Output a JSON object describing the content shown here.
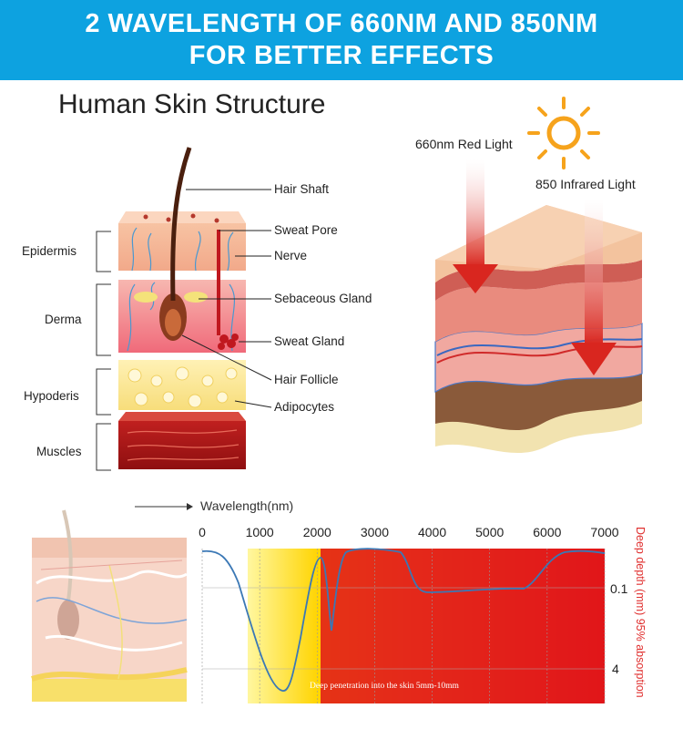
{
  "banner": {
    "line1": "2 WAVELENGTH OF 660NM AND 850NM",
    "line2": "FOR BETTER EFFECTS"
  },
  "skin_structure": {
    "title": "Human Skin Structure",
    "layers": [
      "Epidermis",
      "Derma",
      "Hypoderis",
      "Muscles"
    ],
    "callouts": [
      "Hair Shaft",
      "Sweat Pore",
      "Nerve",
      "Sebaceous Gland",
      "Sweat Gland",
      "Hair Follicle",
      "Adipocytes"
    ]
  },
  "light": {
    "red_label": "660nm Red Light",
    "ir_label": "850 Infrared Light",
    "sun_icon": "sun-icon"
  },
  "chart_data": {
    "type": "line",
    "xlabel": "Wavelength(nm)",
    "x_ticks": [
      0,
      1000,
      2000,
      3000,
      4000,
      5000,
      6000,
      7000
    ],
    "y_ticks": [
      "0.1",
      "4"
    ],
    "ylabel": "Deep depth (mm) 95% absorption",
    "annotation": "Deep penetration into the skin 5mm-10mm",
    "xlim": [
      0,
      7000
    ],
    "grid": true,
    "colors": {
      "red": "#e0161a",
      "yellow": "#ffe000",
      "curve": "#3b78b5"
    }
  }
}
